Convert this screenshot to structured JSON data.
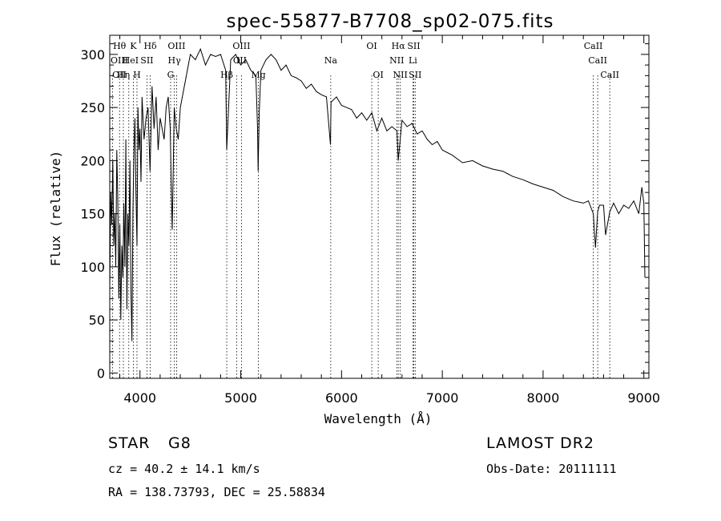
{
  "chart_data": {
    "type": "line",
    "title": "spec-55877-B7708_sp02-075.fits",
    "xlabel": "Wavelength (Å)",
    "ylabel": "Flux (relative)",
    "xlim": [
      3700,
      9050
    ],
    "ylim": [
      -5,
      318
    ],
    "xticks": [
      4000,
      5000,
      6000,
      7000,
      8000,
      9000
    ],
    "yticks": [
      0,
      50,
      100,
      150,
      200,
      250,
      300
    ],
    "grid": false,
    "legend": "none",
    "line_color": "#000000",
    "series": [
      {
        "x": [
          3700,
          3710,
          3720,
          3730,
          3740,
          3750,
          3760,
          3770,
          3780,
          3790,
          3800,
          3810,
          3820,
          3830,
          3840,
          3850,
          3860,
          3870,
          3880,
          3890,
          3900,
          3910,
          3920,
          3930,
          3940,
          3950,
          3960,
          3970,
          3980,
          3990,
          4000,
          4010,
          4020,
          4040,
          4060,
          4080,
          4100,
          4120,
          4140,
          4160,
          4180,
          4200,
          4220,
          4240,
          4260,
          4280,
          4300,
          4310,
          4320,
          4340,
          4360,
          4380,
          4400,
          4420,
          4440,
          4460,
          4480,
          4500,
          4550,
          4600,
          4650,
          4700,
          4750,
          4800,
          4850,
          4861,
          4900,
          4950,
          5000,
          5050,
          5100,
          5150,
          5167,
          5172,
          5183,
          5200,
          5250,
          5300,
          5350,
          5400,
          5450,
          5500,
          5550,
          5600,
          5650,
          5700,
          5750,
          5800,
          5850,
          5890,
          5896,
          5950,
          6000,
          6050,
          6100,
          6150,
          6200,
          6250,
          6300,
          6350,
          6400,
          6450,
          6500,
          6550,
          6563,
          6600,
          6650,
          6700,
          6750,
          6800,
          6850,
          6900,
          6950,
          7000,
          7100,
          7200,
          7300,
          7400,
          7500,
          7600,
          7700,
          7800,
          7900,
          8000,
          8100,
          8200,
          8300,
          8400,
          8450,
          8498,
          8520,
          8542,
          8560,
          8600,
          8620,
          8662,
          8700,
          8750,
          8800,
          8850,
          8900,
          8950,
          8980,
          9000,
          9010
        ],
        "y": [
          80,
          170,
          140,
          200,
          120,
          150,
          100,
          210,
          160,
          70,
          140,
          50,
          120,
          90,
          160,
          100,
          220,
          60,
          150,
          120,
          200,
          80,
          30,
          150,
          210,
          240,
          170,
          120,
          250,
          210,
          230,
          180,
          260,
          220,
          240,
          250,
          190,
          270,
          230,
          260,
          210,
          240,
          230,
          220,
          250,
          260,
          230,
          180,
          135,
          250,
          230,
          220,
          250,
          260,
          270,
          280,
          290,
          300,
          295,
          305,
          290,
          300,
          298,
          300,
          285,
          210,
          295,
          300,
          290,
          295,
          285,
          280,
          230,
          190,
          245,
          285,
          295,
          300,
          295,
          285,
          290,
          280,
          278,
          275,
          268,
          272,
          265,
          262,
          260,
          215,
          255,
          260,
          252,
          250,
          248,
          240,
          245,
          238,
          245,
          228,
          240,
          228,
          232,
          228,
          200,
          238,
          232,
          235,
          225,
          228,
          220,
          215,
          218,
          210,
          205,
          198,
          200,
          195,
          192,
          190,
          185,
          182,
          178,
          175,
          172,
          166,
          162,
          160,
          162,
          150,
          118,
          152,
          158,
          158,
          130,
          152,
          160,
          150,
          158,
          155,
          162,
          150,
          175,
          160,
          90
        ]
      }
    ],
    "line_labels": [
      {
        "text": "Hθ",
        "x": 3797,
        "row": 0
      },
      {
        "text": "K",
        "x": 3934,
        "row": 0
      },
      {
        "text": "Hδ",
        "x": 4102,
        "row": 0
      },
      {
        "text": "OIII",
        "x": 4363,
        "row": 0
      },
      {
        "text": "OIII",
        "x": 5007,
        "row": 0
      },
      {
        "text": "OI",
        "x": 6300,
        "row": 0
      },
      {
        "text": "Hα",
        "x": 6563,
        "row": 0
      },
      {
        "text": "SII",
        "x": 6717,
        "row": 0
      },
      {
        "text": "CaII",
        "x": 8498,
        "row": 0
      },
      {
        "text": "OIII",
        "x": 3727,
        "row": 1
      },
      {
        "text": "He",
        "x": 3889,
        "row": 1
      },
      {
        "text": "I",
        "x": 3970,
        "row": 1
      },
      {
        "text": "SII",
        "x": 4069,
        "row": 1
      },
      {
        "text": "Hγ",
        "x": 4341,
        "row": 1
      },
      {
        "text": "O",
        "x": 4959,
        "row": 1
      },
      {
        "text": "III",
        "x": 5007,
        "row": 1
      },
      {
        "text": "Na",
        "x": 5893,
        "row": 1
      },
      {
        "text": "NII",
        "x": 6548,
        "row": 1
      },
      {
        "text": "Li",
        "x": 6708,
        "row": 1
      },
      {
        "text": "CaII",
        "x": 8542,
        "row": 1
      },
      {
        "text": "OII",
        "x": 3727,
        "row": 2
      },
      {
        "text": "Hη",
        "x": 3835,
        "row": 2
      },
      {
        "text": "H",
        "x": 3970,
        "row": 2
      },
      {
        "text": "G",
        "x": 4304,
        "row": 2
      },
      {
        "text": "Hβ",
        "x": 4861,
        "row": 2
      },
      {
        "text": "Mg",
        "x": 5175,
        "row": 2
      },
      {
        "text": "OI",
        "x": 6364,
        "row": 2
      },
      {
        "text": "NII",
        "x": 6583,
        "row": 2
      },
      {
        "text": "SII",
        "x": 6731,
        "row": 2
      },
      {
        "text": "CaII",
        "x": 8662,
        "row": 2
      }
    ],
    "line_markers": [
      3727,
      3797,
      3835,
      3889,
      3934,
      3970,
      4069,
      4102,
      4304,
      4341,
      4363,
      4861,
      4959,
      5007,
      5175,
      5893,
      6300,
      6364,
      6548,
      6563,
      6583,
      6708,
      6717,
      6731,
      8498,
      8542,
      8662
    ]
  },
  "info": {
    "object_class": "STAR",
    "subclass": "G8",
    "redshift": "cz = 40.2 ± 14.1 km/s",
    "coords": "RA = 138.73793, DEC =  25.58834",
    "survey": "LAMOST DR2",
    "obs_date": "Obs-Date: 20111111"
  }
}
